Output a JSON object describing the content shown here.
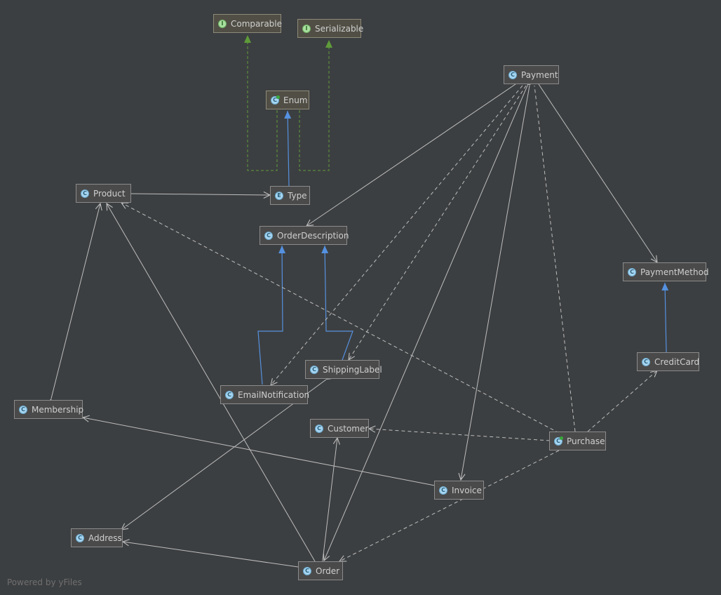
{
  "nodes": {
    "comparable": {
      "label": "Comparable",
      "kind": "interface",
      "badge": "I"
    },
    "serializable": {
      "label": "Serializable",
      "kind": "interface",
      "badge": "I"
    },
    "enum": {
      "label": "Enum",
      "kind": "abstract-class",
      "badge": "C"
    },
    "payment": {
      "label": "Payment",
      "kind": "class",
      "badge": "C"
    },
    "product": {
      "label": "Product",
      "kind": "class",
      "badge": "C"
    },
    "type": {
      "label": "Type",
      "kind": "enum",
      "badge": "E"
    },
    "order_description": {
      "label": "OrderDescription",
      "kind": "class",
      "badge": "C"
    },
    "payment_method": {
      "label": "PaymentMethod",
      "kind": "class",
      "badge": "C"
    },
    "credit_card": {
      "label": "CreditCard",
      "kind": "class",
      "badge": "C"
    },
    "shipping_label": {
      "label": "ShippingLabel",
      "kind": "class",
      "badge": "C"
    },
    "email_notification": {
      "label": "EmailNotification",
      "kind": "class",
      "badge": "C"
    },
    "membership": {
      "label": "Membership",
      "kind": "class",
      "badge": "C"
    },
    "customer": {
      "label": "Customer",
      "kind": "class",
      "badge": "C"
    },
    "purchase": {
      "label": "Purchase",
      "kind": "class",
      "badge": "C"
    },
    "invoice": {
      "label": "Invoice",
      "kind": "class",
      "badge": "C"
    },
    "address": {
      "label": "Address",
      "kind": "class",
      "badge": "C"
    },
    "order": {
      "label": "Order",
      "kind": "class",
      "badge": "C"
    }
  },
  "footer": {
    "text": "Powered by yFiles"
  },
  "colors": {
    "background": "#3c3f41",
    "association": "#bdbdbd",
    "inheritance": "#5591e0",
    "realization": "#5f9b3a"
  }
}
